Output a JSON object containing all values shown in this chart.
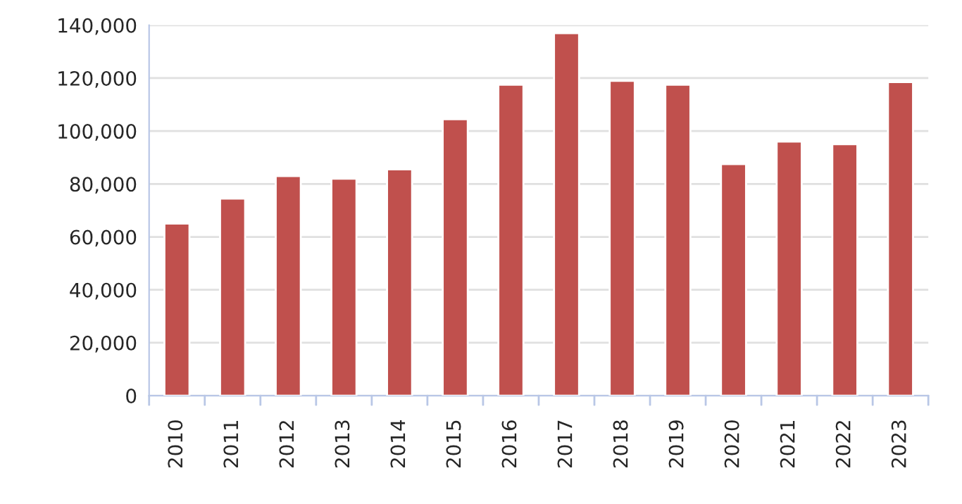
{
  "chart_data": {
    "type": "bar",
    "categories": [
      "2010",
      "2011",
      "2012",
      "2013",
      "2014",
      "2015",
      "2016",
      "2017",
      "2018",
      "2019",
      "2020",
      "2021",
      "2022",
      "2023"
    ],
    "values": [
      65000,
      74500,
      83000,
      82000,
      85500,
      104500,
      117500,
      137000,
      119000,
      117500,
      87500,
      96000,
      95000,
      118500
    ],
    "color": "#c0504d",
    "ylim": [
      0,
      140000
    ],
    "yticks": [
      {
        "value": 0,
        "label": "0"
      },
      {
        "value": 20000,
        "label": "20,000"
      },
      {
        "value": 40000,
        "label": "40,000"
      },
      {
        "value": 60000,
        "label": "60,000"
      },
      {
        "value": 80000,
        "label": "80,000"
      },
      {
        "value": 100000,
        "label": "100,000"
      },
      {
        "value": 120000,
        "label": "120,000"
      },
      {
        "value": 140000,
        "label": "140,000"
      }
    ],
    "grid": "y"
  }
}
